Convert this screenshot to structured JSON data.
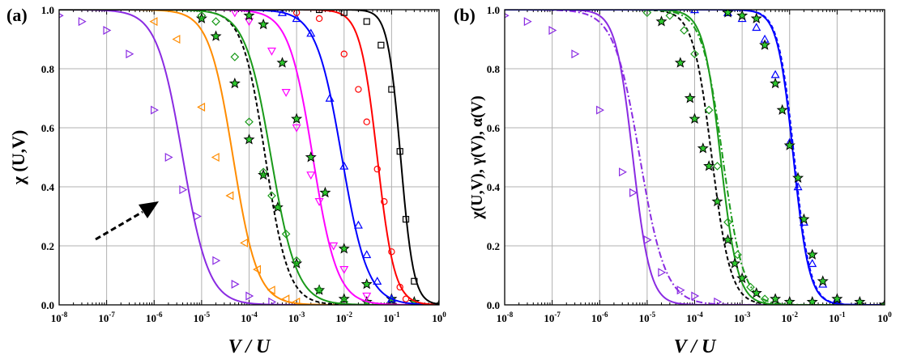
{
  "chart_data": [
    {
      "panel_label": "(a)",
      "type": "line",
      "xlabel": "V / U",
      "ylabel": "χ (U,V)",
      "xscale": "log",
      "xlim": [
        1e-08,
        1
      ],
      "ylim": [
        0,
        1
      ],
      "x_ticks": [
        -8,
        -7,
        -6,
        -5,
        -4,
        -3,
        -2,
        -1,
        0
      ],
      "y_ticks": [
        "0.0",
        "0.2",
        "0.4",
        "0.6",
        "0.8",
        "1.0"
      ],
      "grid": true,
      "annotation": "dashed arrow pointing up-right",
      "series": [
        {
          "color": "#8a2be2",
          "marker": "triangle-right",
          "line": "solid",
          "x0": 4e-06,
          "w": 1.6,
          "x": [
            1e-08,
            3e-08,
            1e-07,
            3e-07,
            1e-06,
            2e-06,
            4e-06,
            8e-06,
            2e-05,
            5e-05,
            0.0001,
            0.0003
          ],
          "y": [
            0.98,
            0.96,
            0.93,
            0.85,
            0.66,
            0.5,
            0.39,
            0.3,
            0.15,
            0.07,
            0.03,
            0.01
          ]
        },
        {
          "color": "#ff8c00",
          "marker": "triangle-left",
          "line": "solid",
          "x0": 4.6e-05,
          "w": 1.7,
          "x": [
            1e-06,
            3e-06,
            1e-05,
            2e-05,
            4e-05,
            8e-05,
            0.00015,
            0.0003,
            0.0006,
            0.001
          ],
          "y": [
            0.96,
            0.9,
            0.67,
            0.5,
            0.37,
            0.21,
            0.12,
            0.05,
            0.02,
            0.01
          ]
        },
        {
          "color": "#000000",
          "marker": "star",
          "line": "dashed",
          "x0": 0.00022,
          "w": 1.8,
          "x": [
            1e-05,
            2e-05,
            5e-05,
            0.0001,
            0.0002,
            0.0004,
            0.001,
            0.003,
            0.01,
            0.03,
            0.1
          ],
          "y": [
            0.97,
            0.91,
            0.75,
            0.56,
            0.44,
            0.33,
            0.14,
            0.05,
            0.02,
            0.01,
            0.0
          ]
        },
        {
          "color": "#1a9a1a",
          "marker": "diamond",
          "line": "solid",
          "x0": 0.00029,
          "w": 1.6,
          "x": [
            1e-05,
            2e-05,
            5e-05,
            0.0001,
            0.0002,
            0.0003,
            0.0006,
            0.001,
            0.003,
            0.01
          ],
          "y": [
            0.98,
            0.96,
            0.84,
            0.62,
            0.45,
            0.37,
            0.24,
            0.15,
            0.05,
            0.01
          ]
        },
        {
          "color": "#ff00ff",
          "marker": "triangle-down",
          "line": "solid",
          "x0": 0.0022,
          "w": 1.7,
          "x": [
            5e-05,
            0.0001,
            0.0003,
            0.0006,
            0.001,
            0.002,
            0.003,
            0.006,
            0.01,
            0.03
          ],
          "y": [
            0.99,
            0.96,
            0.86,
            0.72,
            0.6,
            0.44,
            0.35,
            0.2,
            0.12,
            0.03
          ]
        },
        {
          "color": "#000000",
          "marker": "star",
          "line": "none",
          "x0": 0.0025,
          "w": 1.8,
          "x": [
            0.0001,
            0.0002,
            0.0005,
            0.001,
            0.002,
            0.004,
            0.01,
            0.03,
            0.1,
            0.3,
            1
          ],
          "y": [
            0.98,
            0.95,
            0.82,
            0.63,
            0.5,
            0.38,
            0.19,
            0.07,
            0.02,
            0.01,
            0.0
          ]
        },
        {
          "color": "#0000ff",
          "marker": "triangle-up",
          "line": "solid",
          "x0": 0.009,
          "w": 1.6,
          "x": [
            0.0005,
            0.001,
            0.002,
            0.005,
            0.01,
            0.02,
            0.03,
            0.05,
            0.1
          ],
          "y": [
            0.99,
            0.97,
            0.92,
            0.7,
            0.47,
            0.27,
            0.17,
            0.08,
            0.02
          ]
        },
        {
          "color": "#ff0000",
          "marker": "circle",
          "line": "solid",
          "x0": 0.05,
          "w": 2.4,
          "x": [
            0.001,
            0.003,
            0.01,
            0.02,
            0.03,
            0.05,
            0.07,
            0.1,
            0.15,
            0.2
          ],
          "y": [
            0.99,
            0.97,
            0.85,
            0.73,
            0.62,
            0.46,
            0.35,
            0.18,
            0.06,
            0.02
          ]
        },
        {
          "color": "#000000",
          "marker": "square",
          "line": "solid",
          "x0": 0.155,
          "w": 3.2,
          "x": [
            0.003,
            0.01,
            0.03,
            0.06,
            0.1,
            0.15,
            0.2,
            0.3
          ],
          "y": [
            1.0,
            0.99,
            0.96,
            0.88,
            0.73,
            0.52,
            0.29,
            0.08
          ]
        }
      ]
    },
    {
      "panel_label": "(b)",
      "type": "line",
      "xlabel": "V / U",
      "ylabel": "χ(U,V), γ(V), α(V)",
      "xscale": "log",
      "xlim": [
        1e-08,
        1
      ],
      "ylim": [
        0,
        1
      ],
      "x_ticks": [
        -8,
        -7,
        -6,
        -5,
        -4,
        -3,
        -2,
        -1,
        0
      ],
      "y_ticks": [
        "0.0",
        "0.2",
        "0.4",
        "0.6",
        "0.8",
        "1.0"
      ],
      "grid": true,
      "series": [
        {
          "color": "#8a2be2",
          "line": "solid",
          "marker": "none",
          "x0": 5e-06,
          "w": 2.4
        },
        {
          "color": "#8a2be2",
          "line": "dashdot",
          "marker": "triangle-right",
          "x0": 7e-06,
          "w": 1.6,
          "x": [
            1e-08,
            3e-08,
            1e-07,
            3e-07,
            1e-06,
            3e-06,
            5e-06,
            1e-05,
            2e-05,
            5e-05,
            0.0001,
            0.0003
          ],
          "y": [
            0.98,
            0.96,
            0.93,
            0.85,
            0.66,
            0.45,
            0.38,
            0.22,
            0.11,
            0.05,
            0.03,
            0.01
          ]
        },
        {
          "color": "#000000",
          "line": "dashed",
          "marker": "none",
          "x0": 0.00023,
          "w": 2.2
        },
        {
          "color": "#1a9a1a",
          "line": "solid",
          "marker": "none",
          "x0": 0.00035,
          "w": 2.4
        },
        {
          "color": "#1a9a1a",
          "line": "dashdot",
          "marker": "diamond",
          "x0": 0.00039,
          "w": 2.0,
          "x": [
            1e-05,
            3e-05,
            6e-05,
            0.0001,
            0.0002,
            0.0003,
            0.0005,
            0.0008,
            0.0015,
            0.003
          ],
          "y": [
            0.99,
            0.98,
            0.93,
            0.85,
            0.66,
            0.47,
            0.28,
            0.17,
            0.06,
            0.02
          ]
        },
        {
          "color": "#000000",
          "line": "none",
          "marker": "star",
          "x0": 0.00035,
          "w": 1.8,
          "x": [
            2e-05,
            5e-05,
            8e-05,
            0.0001,
            0.00015,
            0.0002,
            0.0003,
            0.0005,
            0.0007,
            0.001,
            0.002,
            0.005,
            0.01,
            0.03,
            0.1,
            0.3,
            1
          ],
          "y": [
            0.96,
            0.82,
            0.7,
            0.63,
            0.53,
            0.47,
            0.35,
            0.22,
            0.14,
            0.09,
            0.04,
            0.02,
            0.01,
            0.01,
            0.0,
            0.0,
            0.0
          ]
        },
        {
          "color": "#0000ff",
          "line": "solid",
          "marker": "none",
          "x0": 0.012,
          "w": 2.6
        },
        {
          "color": "#0000ff",
          "line": "dashed",
          "marker": "triangle-up",
          "x0": 0.0125,
          "w": 2.6,
          "x": [
            0.0001,
            0.0005,
            0.001,
            0.002,
            0.003,
            0.005,
            0.01,
            0.015,
            0.02,
            0.03,
            0.05,
            0.1
          ],
          "y": [
            1.0,
            0.99,
            0.97,
            0.94,
            0.9,
            0.78,
            0.55,
            0.4,
            0.28,
            0.14,
            0.07,
            0.02
          ]
        },
        {
          "color": "#000000",
          "line": "none",
          "marker": "star",
          "x0": 0.012,
          "w": 2.6,
          "x": [
            0.0005,
            0.001,
            0.002,
            0.003,
            0.005,
            0.007,
            0.01,
            0.015,
            0.02,
            0.03,
            0.05,
            0.1,
            0.3,
            1
          ],
          "y": [
            0.99,
            0.98,
            0.97,
            0.88,
            0.75,
            0.66,
            0.54,
            0.43,
            0.29,
            0.17,
            0.08,
            0.02,
            0.01,
            0.0
          ]
        }
      ]
    }
  ]
}
